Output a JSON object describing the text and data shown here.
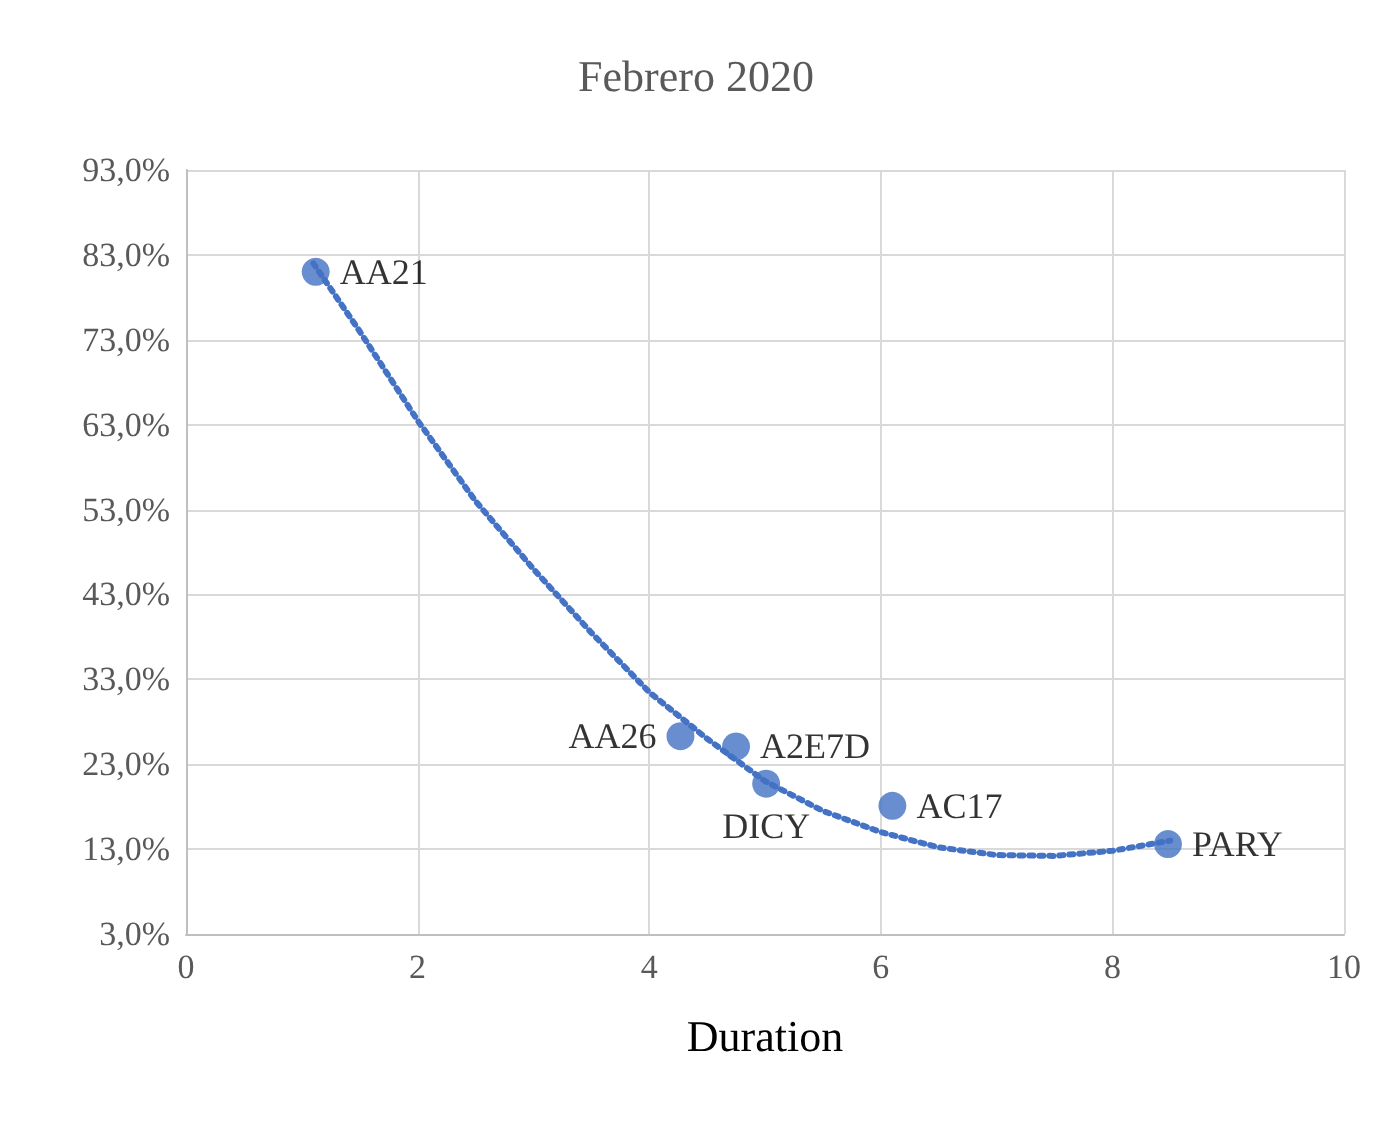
{
  "chart_data": {
    "type": "scatter",
    "title": "Febrero 2020",
    "xlabel": "Duration",
    "xlim": [
      0,
      10
    ],
    "xticks": [
      0,
      2,
      4,
      6,
      8,
      10
    ],
    "ylim": [
      3,
      93
    ],
    "yticks": [
      {
        "value": 3,
        "label": "3,0%"
      },
      {
        "value": 13,
        "label": "13,0%"
      },
      {
        "value": 23,
        "label": "23,0%"
      },
      {
        "value": 33,
        "label": "33,0%"
      },
      {
        "value": 43,
        "label": "43,0%"
      },
      {
        "value": 53,
        "label": "53,0%"
      },
      {
        "value": 63,
        "label": "63,0%"
      },
      {
        "value": 73,
        "label": "73,0%"
      },
      {
        "value": 83,
        "label": "83,0%"
      },
      {
        "value": 93,
        "label": "93,0%"
      }
    ],
    "grid": true,
    "marker": "circle",
    "series": [
      {
        "type": "scatter",
        "color": "#4472c4",
        "x": [
          1.12,
          4.27,
          4.75,
          5.01,
          6.1,
          8.48
        ],
        "values": [
          81,
          26.3,
          25.1,
          20.7,
          18.1,
          13.6
        ],
        "value_labels": [
          "AA21",
          "AA26",
          "A2E7D",
          "DICY",
          "AC17",
          "PARY"
        ]
      },
      {
        "type": "line",
        "color": "#4472c4",
        "line_style": "dotted",
        "marker": "none",
        "x": [
          1.1,
          1.5,
          2,
          2.5,
          3,
          3.5,
          4,
          4.5,
          5,
          5.5,
          6,
          6.5,
          7,
          7.5,
          8,
          8.5
        ],
        "values": [
          82,
          74,
          63.5,
          54,
          46,
          38.5,
          31.5,
          26,
          21,
          17.5,
          15,
          13.2,
          12.3,
          12.2,
          12.8,
          14
        ]
      }
    ]
  }
}
